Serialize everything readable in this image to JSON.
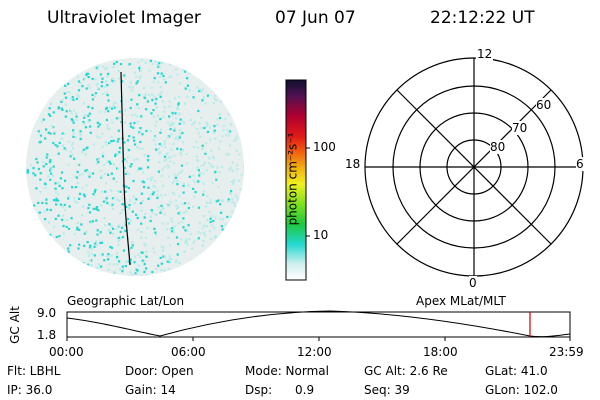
{
  "header": {
    "title": "Ultraviolet Imager",
    "date": "07 Jun 07",
    "time": "22:12:22 UT"
  },
  "colorbar": {
    "unit_label": "photon cm⁻²s⁻¹",
    "ticks": [
      "100",
      "10"
    ]
  },
  "polar": {
    "mlt_labels": [
      "12",
      "18",
      "6",
      "0"
    ],
    "lat_labels": [
      "60",
      "70",
      "80"
    ]
  },
  "map_labels": {
    "left": "Geographic Lat/Lon",
    "right": "Apex MLat/MLT"
  },
  "timeline": {
    "ylabel": "GC Alt",
    "y_ticks": [
      "9.0",
      "1.8"
    ],
    "x_ticks": [
      "00:00",
      "06:00",
      "12:00",
      "18:00",
      "23:59"
    ],
    "current_time": "22:12"
  },
  "info": {
    "filter": "Flt: LBHL",
    "door": "Door: Open",
    "mode": "Mode: Normal",
    "gc_alt": "GC Alt: 2.6 Re",
    "glat": "GLat: 41.0",
    "ip": "IP: 36.0",
    "gain": "Gain: 14",
    "dsp": "Dsp:      0.9",
    "seq": "Seq: 39",
    "glon": "GLon: 102.0"
  },
  "colors": {
    "accent_cyan": "#22d8d0",
    "light_cyan": "#b8ece8",
    "marker": "#cc0000"
  }
}
